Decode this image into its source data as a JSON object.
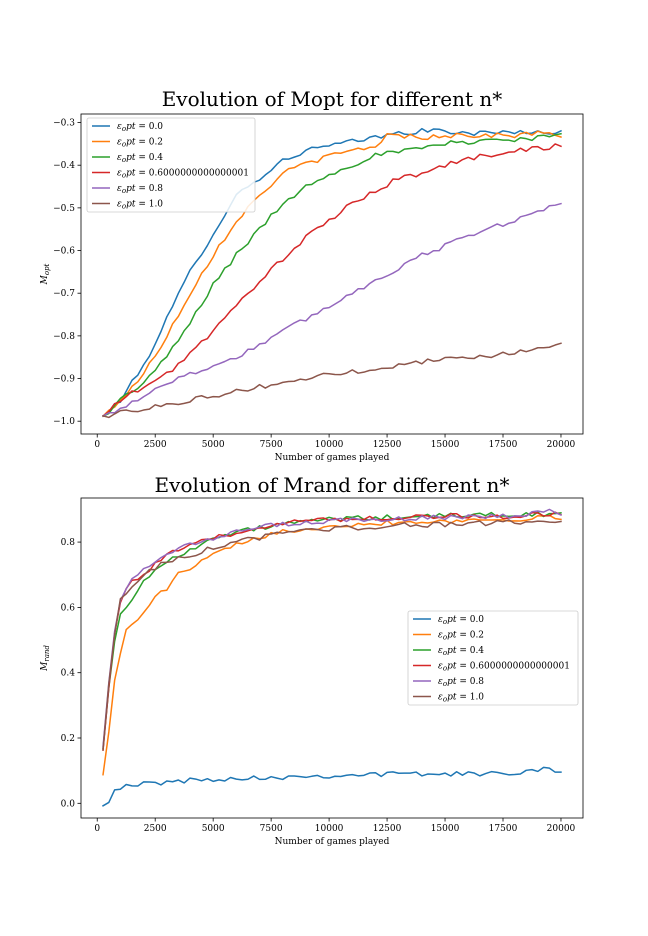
{
  "chart_data": [
    {
      "type": "line",
      "title": "Evolution of Mopt for different n*",
      "xlabel": "Number of games played",
      "ylabel": "M_opt",
      "xlim": [
        -700,
        20950
      ],
      "ylim": [
        -1.03,
        -0.28
      ],
      "xticks": [
        0,
        2500,
        5000,
        7500,
        10000,
        12500,
        15000,
        17500,
        20000
      ],
      "yticks": [
        -1.0,
        -0.9,
        -0.8,
        -0.7,
        -0.6,
        -0.5,
        -0.4,
        -0.3
      ],
      "ytick_labels": [
        "−1.0",
        "−0.9",
        "−0.8",
        "−0.7",
        "−0.6",
        "−0.5",
        "−0.4",
        "−0.3"
      ],
      "grid": false,
      "legend_position": "upper-left",
      "series": [
        {
          "name": "ε_opt = 0.0",
          "color": "#1f77b4",
          "anchors": [
            [
              250,
              -0.99
            ],
            [
              1000,
              -0.95
            ],
            [
              2000,
              -0.87
            ],
            [
              3000,
              -0.76
            ],
            [
              4000,
              -0.65
            ],
            [
              5000,
              -0.56
            ],
            [
              6000,
              -0.47
            ],
            [
              7000,
              -0.43
            ],
            [
              8000,
              -0.39
            ],
            [
              9000,
              -0.365
            ],
            [
              10000,
              -0.355
            ],
            [
              11000,
              -0.345
            ],
            [
              12000,
              -0.335
            ],
            [
              13000,
              -0.325
            ],
            [
              14000,
              -0.32
            ],
            [
              15000,
              -0.32
            ],
            [
              16000,
              -0.325
            ],
            [
              17000,
              -0.325
            ],
            [
              18000,
              -0.32
            ],
            [
              19000,
              -0.325
            ],
            [
              20000,
              -0.32
            ]
          ]
        },
        {
          "name": "ε_opt = 0.2",
          "color": "#ff7f0e",
          "anchors": [
            [
              250,
              -0.99
            ],
            [
              1000,
              -0.95
            ],
            [
              2000,
              -0.89
            ],
            [
              3000,
              -0.8
            ],
            [
              4000,
              -0.7
            ],
            [
              5000,
              -0.61
            ],
            [
              6000,
              -0.53
            ],
            [
              7000,
              -0.47
            ],
            [
              8000,
              -0.42
            ],
            [
              9000,
              -0.395
            ],
            [
              10000,
              -0.38
            ],
            [
              11000,
              -0.365
            ],
            [
              12000,
              -0.355
            ],
            [
              12500,
              -0.33
            ],
            [
              13000,
              -0.33
            ],
            [
              14000,
              -0.335
            ],
            [
              15000,
              -0.33
            ],
            [
              16000,
              -0.33
            ],
            [
              17000,
              -0.33
            ],
            [
              18000,
              -0.33
            ],
            [
              19000,
              -0.325
            ],
            [
              20000,
              -0.33
            ]
          ]
        },
        {
          "name": "ε_opt = 0.4",
          "color": "#2ca02c",
          "anchors": [
            [
              250,
              -0.99
            ],
            [
              1000,
              -0.95
            ],
            [
              2000,
              -0.91
            ],
            [
              3000,
              -0.85
            ],
            [
              4000,
              -0.77
            ],
            [
              5000,
              -0.68
            ],
            [
              6000,
              -0.61
            ],
            [
              7000,
              -0.55
            ],
            [
              8000,
              -0.49
            ],
            [
              9000,
              -0.45
            ],
            [
              10000,
              -0.42
            ],
            [
              11000,
              -0.4
            ],
            [
              12000,
              -0.375
            ],
            [
              13000,
              -0.37
            ],
            [
              14000,
              -0.36
            ],
            [
              15000,
              -0.35
            ],
            [
              16000,
              -0.345
            ],
            [
              17000,
              -0.34
            ],
            [
              18000,
              -0.34
            ],
            [
              19000,
              -0.335
            ],
            [
              20000,
              -0.33
            ]
          ]
        },
        {
          "name": "ε_opt = 0.6000000000000001",
          "color": "#d62728",
          "anchors": [
            [
              250,
              -0.99
            ],
            [
              1000,
              -0.95
            ],
            [
              2000,
              -0.92
            ],
            [
              3000,
              -0.89
            ],
            [
              4000,
              -0.84
            ],
            [
              5000,
              -0.79
            ],
            [
              6000,
              -0.73
            ],
            [
              7000,
              -0.67
            ],
            [
              8000,
              -0.62
            ],
            [
              9000,
              -0.57
            ],
            [
              10000,
              -0.53
            ],
            [
              11000,
              -0.49
            ],
            [
              12000,
              -0.46
            ],
            [
              13000,
              -0.43
            ],
            [
              14000,
              -0.42
            ],
            [
              15000,
              -0.4
            ],
            [
              16000,
              -0.385
            ],
            [
              17000,
              -0.375
            ],
            [
              18000,
              -0.365
            ],
            [
              19000,
              -0.36
            ],
            [
              20000,
              -0.355
            ]
          ]
        },
        {
          "name": "ε_opt = 0.8",
          "color": "#9467bd",
          "anchors": [
            [
              250,
              -0.99
            ],
            [
              1000,
              -0.97
            ],
            [
              2000,
              -0.94
            ],
            [
              3000,
              -0.91
            ],
            [
              4000,
              -0.89
            ],
            [
              5000,
              -0.87
            ],
            [
              6000,
              -0.85
            ],
            [
              7000,
              -0.82
            ],
            [
              8000,
              -0.79
            ],
            [
              9000,
              -0.76
            ],
            [
              10000,
              -0.73
            ],
            [
              11000,
              -0.7
            ],
            [
              12000,
              -0.67
            ],
            [
              13000,
              -0.64
            ],
            [
              14000,
              -0.61
            ],
            [
              15000,
              -0.59
            ],
            [
              16000,
              -0.565
            ],
            [
              17000,
              -0.545
            ],
            [
              18000,
              -0.53
            ],
            [
              19000,
              -0.51
            ],
            [
              20000,
              -0.485
            ]
          ]
        },
        {
          "name": "ε_opt = 1.0",
          "color": "#8c564b",
          "anchors": [
            [
              250,
              -0.99
            ],
            [
              1000,
              -0.98
            ],
            [
              2000,
              -0.97
            ],
            [
              3000,
              -0.96
            ],
            [
              4000,
              -0.95
            ],
            [
              5000,
              -0.94
            ],
            [
              6000,
              -0.93
            ],
            [
              7000,
              -0.92
            ],
            [
              8000,
              -0.91
            ],
            [
              9000,
              -0.9
            ],
            [
              10000,
              -0.89
            ],
            [
              11000,
              -0.885
            ],
            [
              12000,
              -0.875
            ],
            [
              13000,
              -0.87
            ],
            [
              14000,
              -0.86
            ],
            [
              15000,
              -0.855
            ],
            [
              16000,
              -0.85
            ],
            [
              17000,
              -0.845
            ],
            [
              18000,
              -0.84
            ],
            [
              19000,
              -0.83
            ],
            [
              20000,
              -0.82
            ]
          ]
        }
      ]
    },
    {
      "type": "line",
      "title": "Evolution of Mrand for different n*",
      "xlabel": "Number of games played",
      "ylabel": "M_rand",
      "xlim": [
        -700,
        20950
      ],
      "ylim": [
        -0.045,
        0.935
      ],
      "xticks": [
        0,
        2500,
        5000,
        7500,
        10000,
        12500,
        15000,
        17500,
        20000
      ],
      "yticks": [
        0.0,
        0.2,
        0.4,
        0.6,
        0.8
      ],
      "ytick_labels": [
        "0.0",
        "0.2",
        "0.4",
        "0.6",
        "0.8"
      ],
      "grid": false,
      "legend_position": "center-right",
      "series": [
        {
          "name": "ε_opt = 0.0",
          "color": "#1f77b4",
          "anchors": [
            [
              250,
              0.0
            ],
            [
              500,
              0.01
            ],
            [
              750,
              0.04
            ],
            [
              1000,
              0.05
            ],
            [
              1500,
              0.05
            ],
            [
              2000,
              0.06
            ],
            [
              3000,
              0.065
            ],
            [
              4000,
              0.07
            ],
            [
              5000,
              0.075
            ],
            [
              7500,
              0.08
            ],
            [
              10000,
              0.085
            ],
            [
              12500,
              0.09
            ],
            [
              15000,
              0.09
            ],
            [
              17500,
              0.09
            ],
            [
              19500,
              0.11
            ],
            [
              20000,
              0.095
            ]
          ]
        },
        {
          "name": "ε_opt = 0.2",
          "color": "#ff7f0e",
          "anchors": [
            [
              250,
              0.095
            ],
            [
              500,
              0.22
            ],
            [
              750,
              0.37
            ],
            [
              1000,
              0.46
            ],
            [
              1250,
              0.53
            ],
            [
              1500,
              0.55
            ],
            [
              2000,
              0.58
            ],
            [
              2500,
              0.63
            ],
            [
              3000,
              0.66
            ],
            [
              3500,
              0.7
            ],
            [
              4000,
              0.72
            ],
            [
              5000,
              0.76
            ],
            [
              6000,
              0.79
            ],
            [
              7000,
              0.81
            ],
            [
              7500,
              0.83
            ],
            [
              10000,
              0.85
            ],
            [
              12500,
              0.86
            ],
            [
              15000,
              0.865
            ],
            [
              17500,
              0.87
            ],
            [
              20000,
              0.875
            ]
          ]
        },
        {
          "name": "ε_opt = 0.4",
          "color": "#2ca02c",
          "anchors": [
            [
              250,
              0.175
            ],
            [
              500,
              0.35
            ],
            [
              750,
              0.5
            ],
            [
              1000,
              0.575
            ],
            [
              1500,
              0.63
            ],
            [
              2000,
              0.68
            ],
            [
              3000,
              0.74
            ],
            [
              4000,
              0.78
            ],
            [
              5000,
              0.81
            ],
            [
              6000,
              0.83
            ],
            [
              7500,
              0.85
            ],
            [
              10000,
              0.87
            ],
            [
              12500,
              0.875
            ],
            [
              15000,
              0.88
            ],
            [
              17500,
              0.885
            ],
            [
              20000,
              0.885
            ]
          ]
        },
        {
          "name": "ε_opt = 0.6000000000000001",
          "color": "#d62728",
          "anchors": [
            [
              250,
              0.17
            ],
            [
              500,
              0.36
            ],
            [
              750,
              0.52
            ],
            [
              1000,
              0.62
            ],
            [
              1500,
              0.68
            ],
            [
              2000,
              0.7
            ],
            [
              3000,
              0.76
            ],
            [
              4000,
              0.79
            ],
            [
              5000,
              0.81
            ],
            [
              6000,
              0.83
            ],
            [
              7500,
              0.855
            ],
            [
              10000,
              0.87
            ],
            [
              12500,
              0.875
            ],
            [
              15000,
              0.88
            ],
            [
              17500,
              0.88
            ],
            [
              20000,
              0.885
            ]
          ]
        },
        {
          "name": "ε_opt = 0.8",
          "color": "#9467bd",
          "anchors": [
            [
              250,
              0.18
            ],
            [
              500,
              0.37
            ],
            [
              750,
              0.52
            ],
            [
              1000,
              0.62
            ],
            [
              1500,
              0.69
            ],
            [
              2000,
              0.72
            ],
            [
              3000,
              0.77
            ],
            [
              4000,
              0.79
            ],
            [
              5000,
              0.81
            ],
            [
              6000,
              0.83
            ],
            [
              7500,
              0.85
            ],
            [
              10000,
              0.865
            ],
            [
              12500,
              0.87
            ],
            [
              15000,
              0.875
            ],
            [
              17500,
              0.88
            ],
            [
              19750,
              0.895
            ],
            [
              20000,
              0.89
            ]
          ]
        },
        {
          "name": "ε_opt = 1.0",
          "color": "#8c564b",
          "anchors": [
            [
              250,
              0.17
            ],
            [
              500,
              0.36
            ],
            [
              750,
              0.52
            ],
            [
              1000,
              0.62
            ],
            [
              1500,
              0.67
            ],
            [
              2000,
              0.7
            ],
            [
              3000,
              0.74
            ],
            [
              4000,
              0.76
            ],
            [
              5000,
              0.785
            ],
            [
              6000,
              0.8
            ],
            [
              7500,
              0.82
            ],
            [
              10000,
              0.84
            ],
            [
              12500,
              0.85
            ],
            [
              15000,
              0.855
            ],
            [
              17500,
              0.86
            ],
            [
              20000,
              0.86
            ]
          ]
        }
      ]
    }
  ]
}
